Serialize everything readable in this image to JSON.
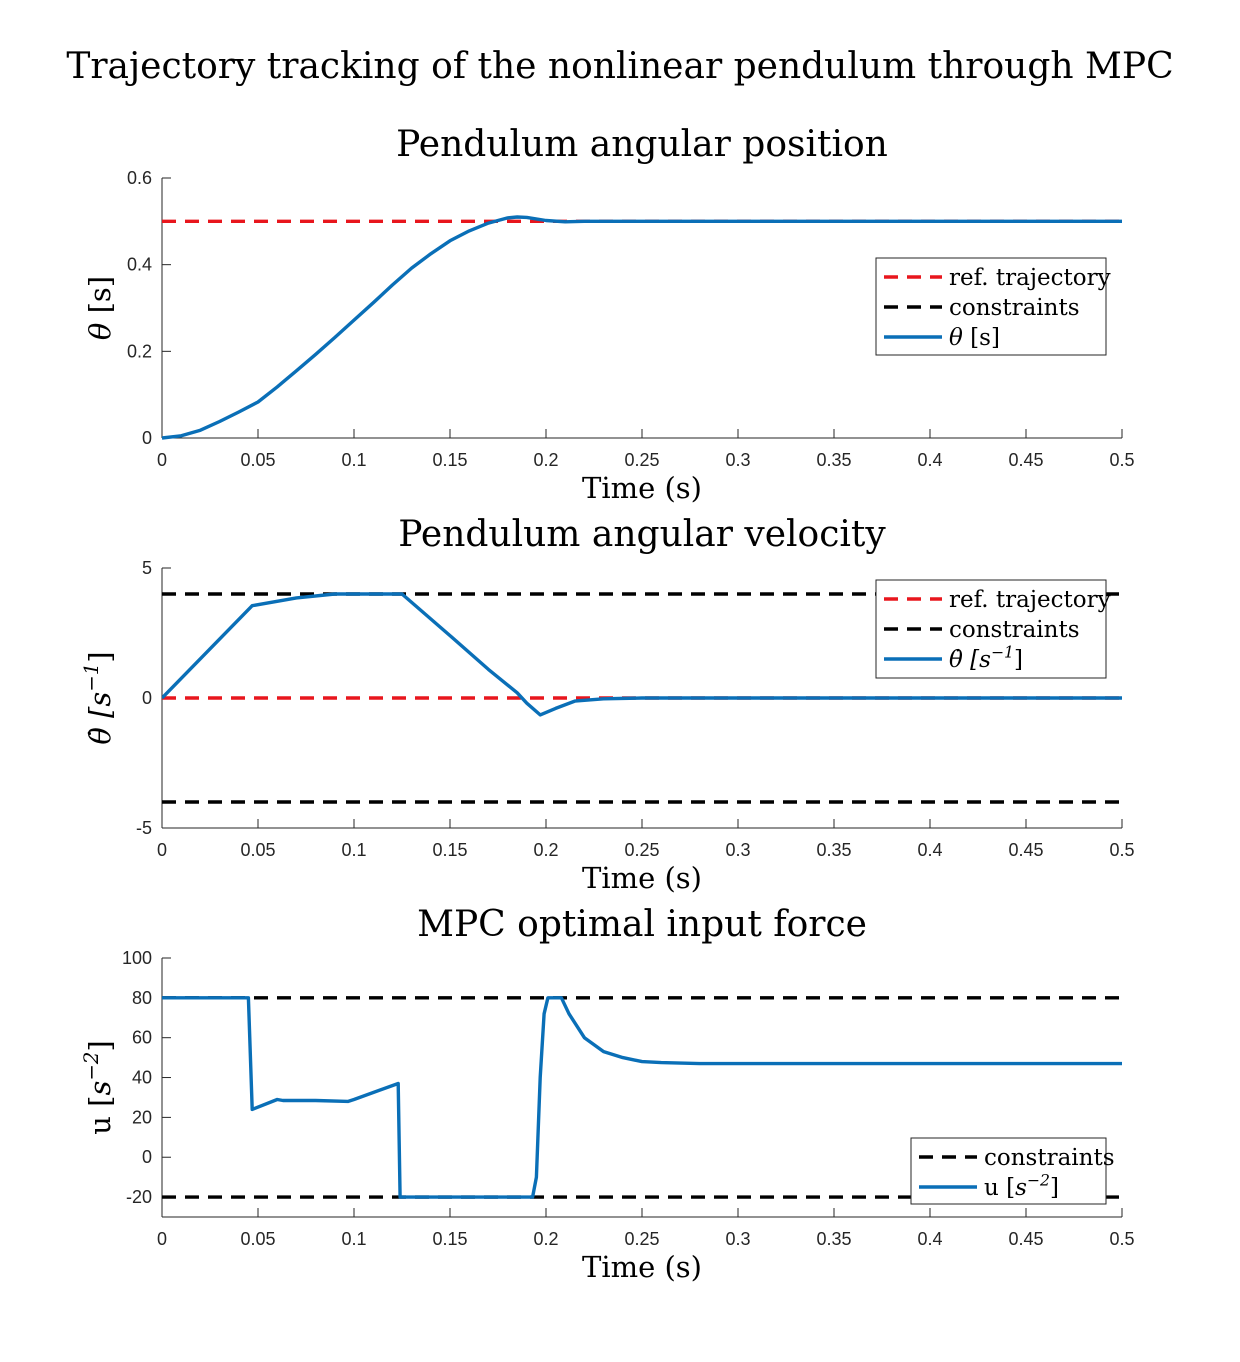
{
  "suptitle": "Trajectory tracking of the nonlinear pendulum through MPC",
  "colors": {
    "ref": "#e8161d",
    "constraint": "#000000",
    "signal": "#0a6fb7",
    "axis": "#262626"
  },
  "chart_data": [
    {
      "type": "line",
      "title": "Pendulum angular position",
      "xlabel": "Time (s)",
      "ylabel": "θ [s]",
      "xlim": [
        0,
        0.5
      ],
      "ylim": [
        0,
        0.6
      ],
      "xticks": [
        "0",
        "0.05",
        "0.1",
        "0.15",
        "0.2",
        "0.25",
        "0.3",
        "0.35",
        "0.4",
        "0.45",
        "0.5"
      ],
      "yticks": [
        "0",
        "0.2",
        "0.4",
        "0.6"
      ],
      "grid": false,
      "legend": "right",
      "legend_entries": [
        "ref. trajectory",
        "constraints",
        "θ [s]"
      ],
      "series": [
        {
          "name": "ref. trajectory",
          "style": "dashed",
          "x": [
            0,
            0.5
          ],
          "y": [
            0.5,
            0.5
          ]
        },
        {
          "name": "constraints",
          "style": "dashed",
          "x": [],
          "y": []
        },
        {
          "name": "θ [s]",
          "style": "solid",
          "x": [
            0,
            0.01,
            0.02,
            0.03,
            0.04,
            0.05,
            0.06,
            0.07,
            0.08,
            0.09,
            0.1,
            0.11,
            0.12,
            0.13,
            0.14,
            0.15,
            0.16,
            0.17,
            0.18,
            0.185,
            0.19,
            0.2,
            0.21,
            0.22,
            0.25,
            0.3,
            0.5
          ],
          "y": [
            0,
            0.005,
            0.018,
            0.038,
            0.06,
            0.083,
            0.118,
            0.155,
            0.193,
            0.232,
            0.272,
            0.312,
            0.353,
            0.392,
            0.425,
            0.455,
            0.478,
            0.496,
            0.508,
            0.51,
            0.509,
            0.502,
            0.499,
            0.5,
            0.5,
            0.5,
            0.5
          ]
        }
      ]
    },
    {
      "type": "line",
      "title": "Pendulum angular velocity",
      "xlabel": "Time (s)",
      "ylabel": "θ̇ [s⁻¹]",
      "xlim": [
        0,
        0.5
      ],
      "ylim": [
        -5,
        5
      ],
      "xticks": [
        "0",
        "0.05",
        "0.1",
        "0.15",
        "0.2",
        "0.25",
        "0.3",
        "0.35",
        "0.4",
        "0.45",
        "0.5"
      ],
      "yticks": [
        "-5",
        "0",
        "5"
      ],
      "grid": false,
      "legend": "top-right",
      "legend_entries": [
        "ref. trajectory",
        "constraints",
        "θ̇ [s⁻¹]"
      ],
      "series": [
        {
          "name": "ref. trajectory",
          "style": "dashed",
          "x": [
            0,
            0.5
          ],
          "y": [
            0,
            0
          ]
        },
        {
          "name": "constraints",
          "style": "dashed",
          "x": [
            0,
            0.5
          ],
          "y": [
            4,
            4
          ]
        },
        {
          "name": "constraints",
          "style": "dashed",
          "x": [
            0,
            0.5
          ],
          "y": [
            -4,
            -4
          ]
        },
        {
          "name": "θ̇ [s⁻¹]",
          "style": "solid",
          "x": [
            0,
            0.047,
            0.07,
            0.09,
            0.1,
            0.125,
            0.15,
            0.17,
            0.185,
            0.19,
            0.197,
            0.205,
            0.215,
            0.23,
            0.25,
            0.3,
            0.5
          ],
          "y": [
            0,
            3.55,
            3.85,
            4,
            4,
            4,
            2.4,
            1.1,
            0.2,
            -0.2,
            -0.65,
            -0.4,
            -0.12,
            -0.03,
            0,
            0,
            0
          ]
        }
      ]
    },
    {
      "type": "line",
      "title": "MPC optimal input force",
      "xlabel": "Time (s)",
      "ylabel": "u [s⁻²]",
      "xlim": [
        0,
        0.5
      ],
      "ylim": [
        -30,
        100
      ],
      "xticks": [
        "0",
        "0.05",
        "0.1",
        "0.15",
        "0.2",
        "0.25",
        "0.3",
        "0.35",
        "0.4",
        "0.45",
        "0.5"
      ],
      "yticks": [
        "-20",
        "0",
        "20",
        "40",
        "60",
        "80",
        "100"
      ],
      "grid": false,
      "legend": "bottom-right",
      "legend_entries": [
        "constraints",
        "u [s⁻²]"
      ],
      "series": [
        {
          "name": "constraints",
          "style": "dashed",
          "x": [
            0,
            0.5
          ],
          "y": [
            80,
            80
          ]
        },
        {
          "name": "constraints",
          "style": "dashed",
          "x": [
            0,
            0.5
          ],
          "y": [
            -20,
            -20
          ]
        },
        {
          "name": "u [s⁻²]",
          "style": "solid",
          "x": [
            0,
            0.045,
            0.047,
            0.06,
            0.063,
            0.08,
            0.097,
            0.1,
            0.123,
            0.124,
            0.193,
            0.195,
            0.197,
            0.199,
            0.201,
            0.208,
            0.212,
            0.22,
            0.23,
            0.24,
            0.25,
            0.26,
            0.28,
            0.5
          ],
          "y": [
            80,
            80,
            24,
            29,
            28.5,
            28.5,
            28,
            29,
            37,
            -20,
            -20,
            -10,
            40,
            72,
            80,
            80,
            72,
            60,
            53,
            50,
            48,
            47.5,
            47,
            47
          ]
        }
      ]
    }
  ]
}
